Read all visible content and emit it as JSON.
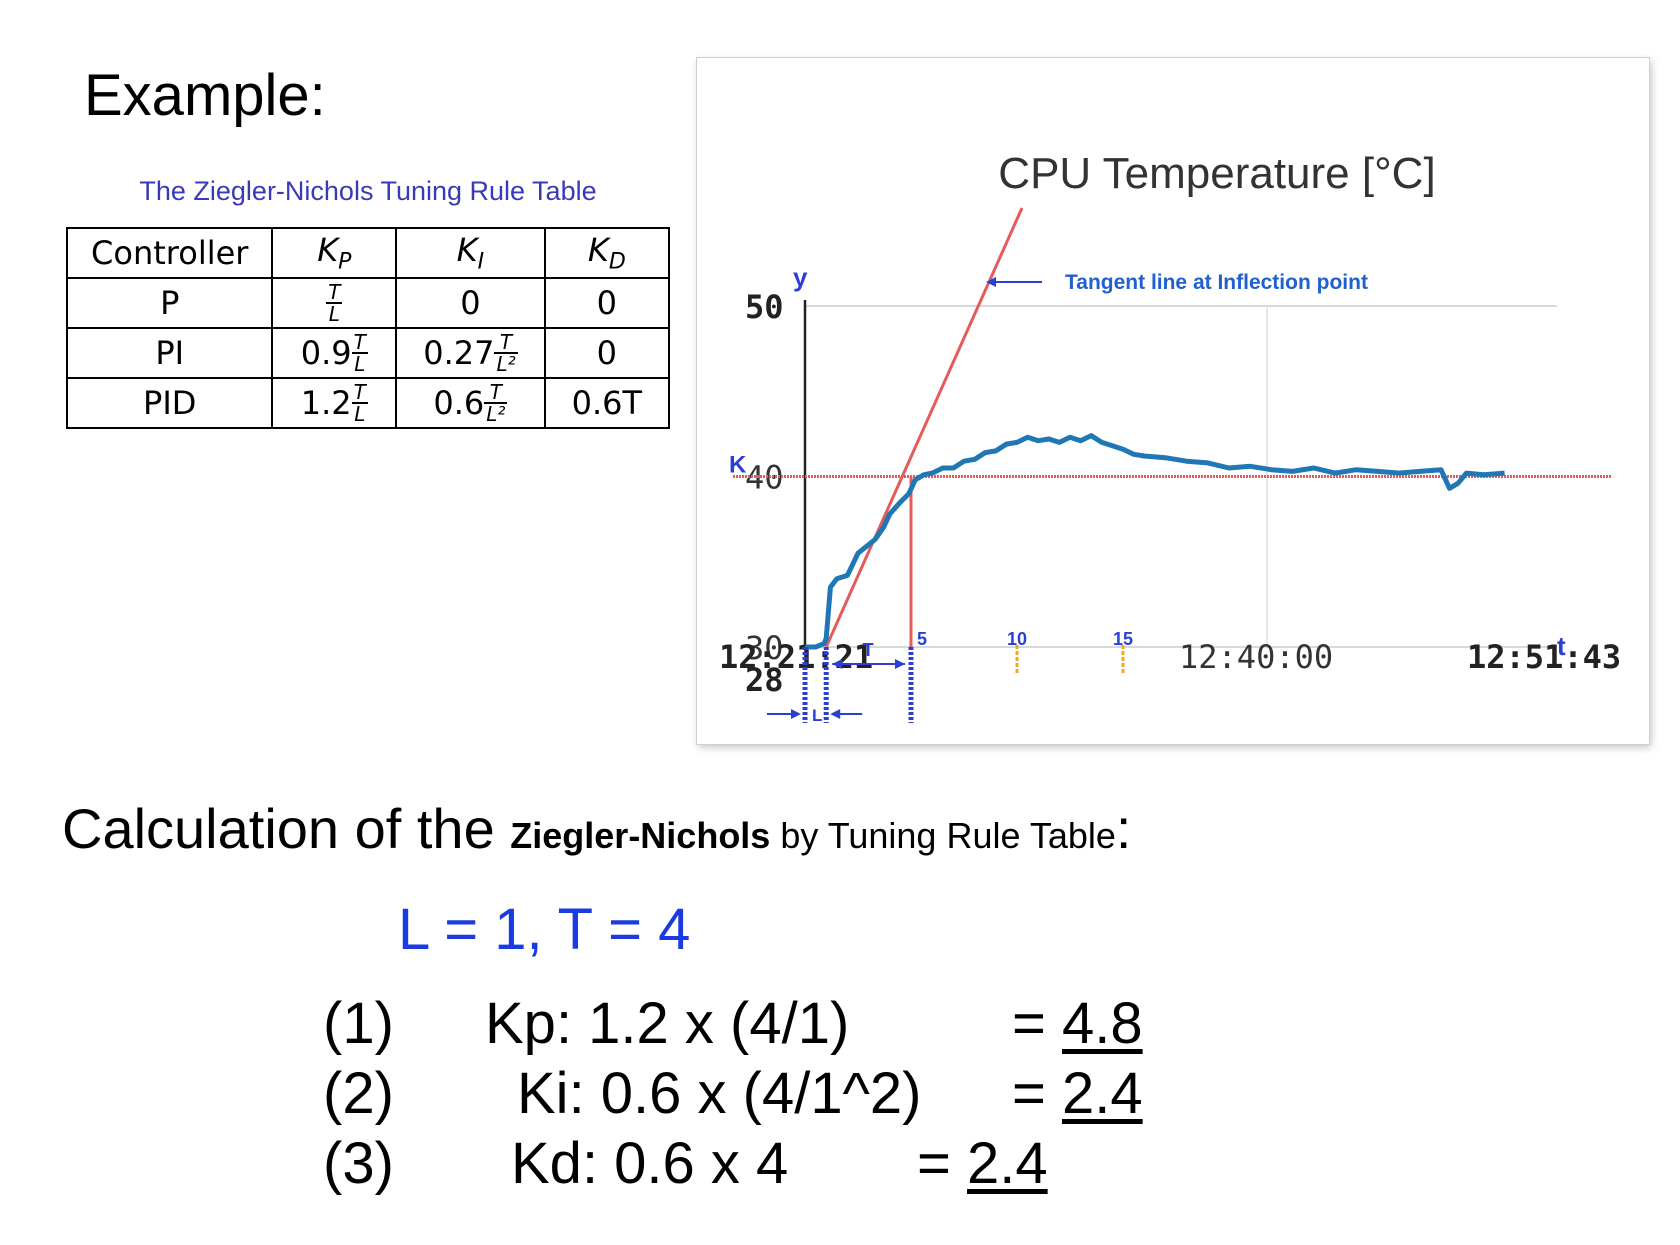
{
  "heading": "Example:",
  "table": {
    "title": "The Ziegler-Nichols Tuning Rule Table",
    "headers": [
      "Controller",
      "K",
      "K",
      "K"
    ],
    "header_subs": [
      "",
      "P",
      "I",
      "D"
    ],
    "rows": [
      {
        "controller": "P",
        "kp": {
          "coef": "",
          "num": "T",
          "den": "L"
        },
        "ki": "0",
        "kd": "0"
      },
      {
        "controller": "PI",
        "kp": {
          "coef": "0.9",
          "num": "T",
          "den": "L"
        },
        "ki": {
          "coef": "0.27",
          "num": "T",
          "den": "L²"
        },
        "kd": "0"
      },
      {
        "controller": "PID",
        "kp": {
          "coef": "1.2",
          "num": "T",
          "den": "L"
        },
        "ki": {
          "coef": "0.6",
          "num": "T",
          "den": "L²"
        },
        "kd": "0.6T"
      }
    ]
  },
  "chart_data": {
    "type": "line",
    "title": "CPU Temperature [°C]",
    "ylabel": "y",
    "xlabel": "t",
    "ylim": [
      28,
      50
    ],
    "y_ticks": [
      "50",
      "40",
      "30",
      "28"
    ],
    "x_ticks": [
      "12:21:21",
      "12:40:00",
      "12:51:43"
    ],
    "grid": true,
    "k_label": "K",
    "k_value": 40,
    "annotation": "Tangent line at Inflection point",
    "minute_markers": [
      "5",
      "10",
      "15"
    ],
    "minute_marker_values": [
      5,
      10,
      15
    ],
    "L_label": "L",
    "T_label": "T",
    "L_value": 1,
    "T_value": 4,
    "series": [
      {
        "x": [
          0,
          0.5,
          0.9,
          1.0,
          1.2,
          1.5,
          2.0,
          2.5,
          3.0,
          3.3,
          3.7,
          4.0,
          4.5,
          4.9,
          5.2,
          5.6,
          6.0,
          6.5,
          7.0,
          7.5,
          8.0,
          8.5,
          9.0,
          9.5,
          10.0,
          10.5,
          11.0,
          11.5,
          12.0,
          12.5,
          13.0,
          13.5,
          14.0,
          14.5,
          15.0,
          15.5,
          16.0,
          17.0,
          18.0,
          19.0,
          20.0,
          21.0,
          22.0,
          23.0,
          24.0,
          25.0,
          26.0,
          27.0,
          28.0,
          29.0,
          30.0,
          30.4,
          30.8,
          31.2,
          32.0,
          33.0
        ],
        "y": [
          30,
          30,
          30.2,
          30.5,
          33.5,
          34.0,
          34.2,
          35.5,
          36.0,
          36.3,
          37.0,
          37.8,
          38.5,
          39.0,
          39.8,
          40.1,
          40.2,
          40.5,
          40.5,
          40.9,
          41.0,
          41.4,
          41.5,
          41.9,
          42.0,
          42.3,
          42.1,
          42.2,
          42.0,
          42.3,
          42.1,
          42.4,
          42.0,
          41.8,
          41.6,
          41.3,
          41.2,
          41.1,
          40.9,
          40.8,
          40.5,
          40.6,
          40.4,
          40.3,
          40.5,
          40.2,
          40.4,
          40.3,
          40.2,
          40.3,
          40.4,
          39.3,
          39.6,
          40.2,
          40.1,
          40.2
        ]
      }
    ],
    "colors": {
      "series": "#1f77b4",
      "guide": "#e55b5b",
      "blue_guide": "#2b3fd6",
      "marker": "#f5a623",
      "annotation": "#2060d0"
    }
  },
  "calc": {
    "prefix": "Calculation of the ",
    "bold": "Ziegler-Nichols",
    "middle": " by Tuning Rule Table",
    "suffix": ":"
  },
  "givens": "L = 1,   T = 4",
  "equations": [
    {
      "n": "(1)",
      "lhs": "Kp: 1.2  x (4/1)",
      "eq": "= ",
      "res": "4.8"
    },
    {
      "n": "(2)",
      "lhs": "Ki: 0.6 x (4/1^2)",
      "eq": "= ",
      "res": "2.4"
    },
    {
      "n": "(3)",
      "lhs": "Kd: 0.6 x 4",
      "eq": "= ",
      "res": "2.4"
    }
  ]
}
